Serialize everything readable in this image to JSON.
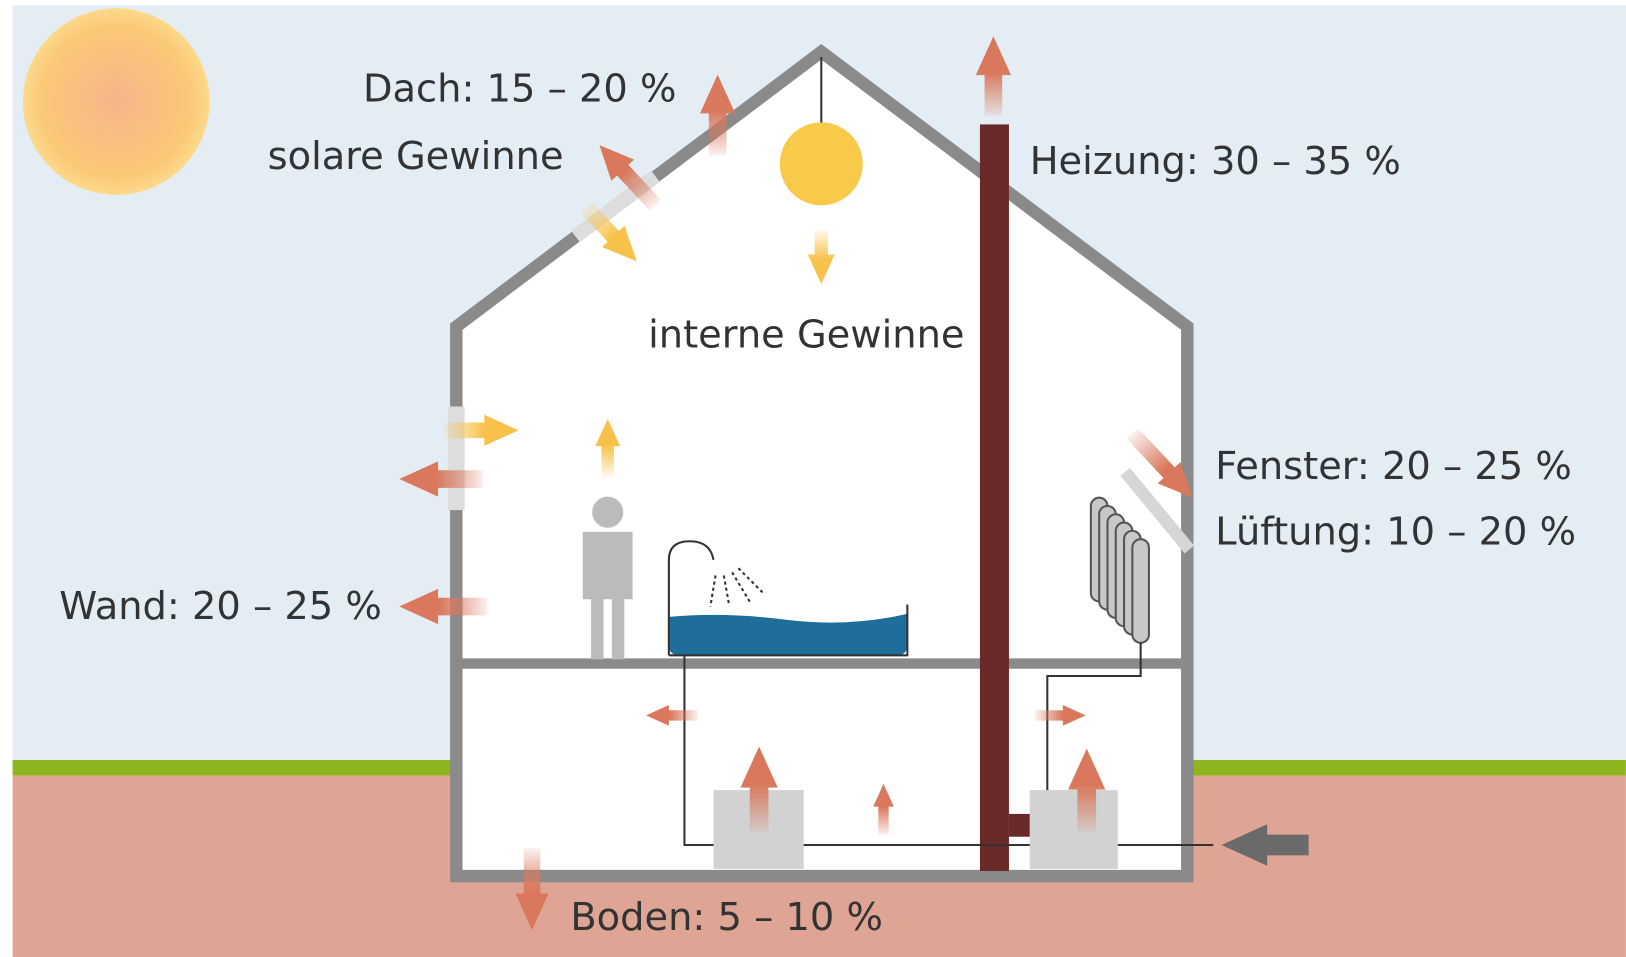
{
  "labels": {
    "roof": "Dach: 15 – 20 %",
    "solar": "solare Gewinne",
    "heating": "Heizung: 30 – 35 %",
    "internal": "interne Gewinne",
    "window": "Fenster: 20 – 25 %",
    "ventilation": "Lüftung: 10 – 20 %",
    "wall": "Wand: 20 – 25 %",
    "floor": "Boden: 5 – 10 %"
  }
}
